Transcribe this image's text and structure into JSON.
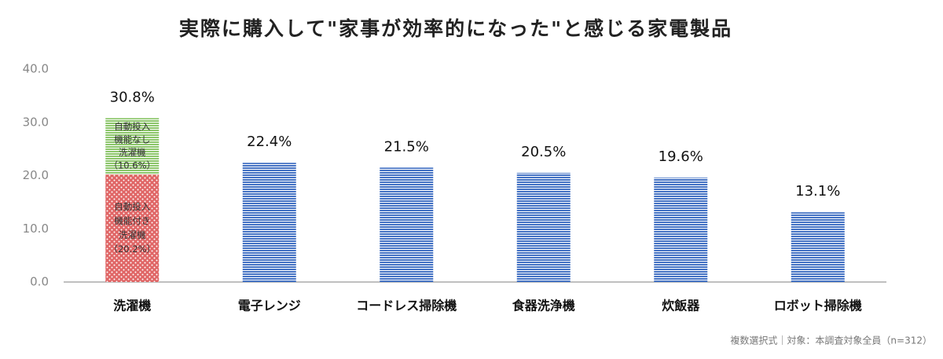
{
  "chart_data": {
    "type": "bar",
    "title": "実際に購入して\"家事が効率的になった\"と感じる家電製品",
    "categories": [
      "洗濯機",
      "電子レンジ",
      "コードレス掃除機",
      "食器洗浄機",
      "炊飯器",
      "ロボット掃除機"
    ],
    "values": [
      30.8,
      22.4,
      21.5,
      20.5,
      19.6,
      13.1
    ],
    "value_labels": [
      "30.8%",
      "22.4%",
      "21.5%",
      "20.5%",
      "19.6%",
      "13.1%"
    ],
    "color": "#4472c4",
    "stack": {
      "category": 0,
      "segments": [
        {
          "lines": [
            "自動投入",
            "機能付き",
            "洗濯機"
          ],
          "value": 20.2,
          "value_label": "（20.2%）",
          "color": "#e06666",
          "pattern": "dots"
        },
        {
          "lines": [
            "自動投入",
            "機能なし",
            "洗濯機"
          ],
          "value": 10.6,
          "value_label": "（10.6%）",
          "color": "#8cc66a",
          "pattern": "stripes"
        }
      ]
    },
    "ylim": [
      0,
      40
    ],
    "yticks": [
      {
        "value": 0,
        "label": "0.0"
      },
      {
        "value": 10,
        "label": "10.0"
      },
      {
        "value": 20,
        "label": "20.0"
      },
      {
        "value": 30,
        "label": "30.0"
      },
      {
        "value": 40,
        "label": "40.0"
      }
    ],
    "note": "複数選択式｜対象：本調査対象全員（n=312）"
  }
}
